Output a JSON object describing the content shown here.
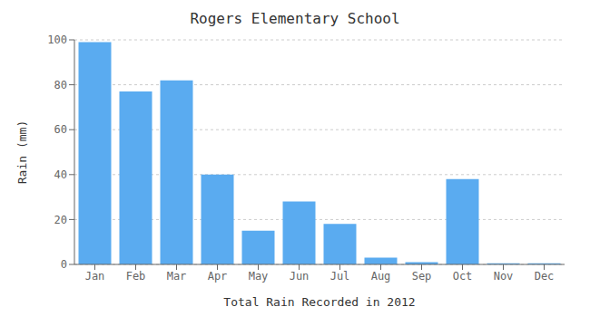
{
  "chart_data": {
    "type": "bar",
    "title": "Rogers Elementary School",
    "xlabel": "Total Rain Recorded in 2012",
    "ylabel": "Rain (mm)",
    "categories": [
      "Jan",
      "Feb",
      "Mar",
      "Apr",
      "May",
      "Jun",
      "Jul",
      "Aug",
      "Sep",
      "Oct",
      "Nov",
      "Dec"
    ],
    "values": [
      99,
      77,
      82,
      40,
      15,
      28,
      18,
      3,
      1,
      38,
      0.5,
      0.5
    ],
    "color": "#5aabf0",
    "ylim": [
      0,
      100
    ],
    "yticks": [
      0,
      20,
      40,
      60,
      80,
      100
    ],
    "grid": true
  }
}
